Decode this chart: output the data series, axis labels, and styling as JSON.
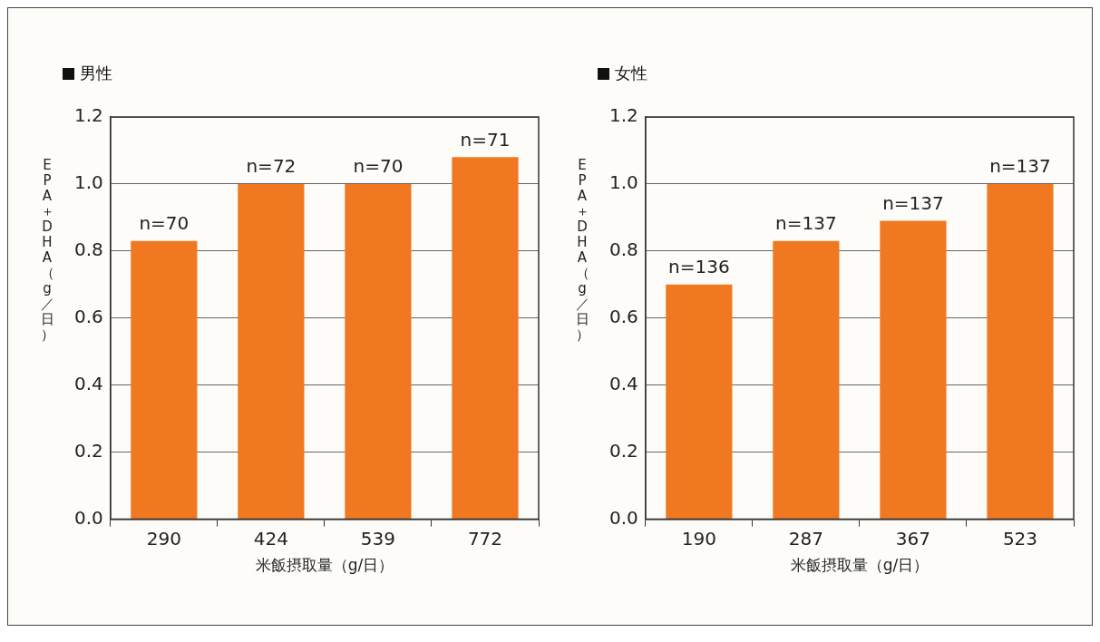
{
  "chart_data": [
    {
      "type": "bar",
      "title": "男性",
      "ylabel": "EPA＋DHA（g／日）",
      "xlabel": "米飯摂取量（g/日）",
      "categories": [
        "290",
        "424",
        "539",
        "772"
      ],
      "values": [
        0.83,
        1.0,
        1.0,
        1.08
      ],
      "annotations": [
        {
          "text": "n=70",
          "x": "290",
          "y": 0.83
        },
        {
          "text": "n=72",
          "x": "424",
          "y": 1.0
        },
        {
          "text": "n=70",
          "x": "539",
          "y": 1.0
        },
        {
          "text": "n=71",
          "x": "772",
          "y": 1.08
        }
      ],
      "color": "#f07820",
      "ylim": [
        0,
        1.2
      ],
      "yticks": [
        {
          "value": 0,
          "label": "0.0"
        },
        0.2,
        0.4,
        0.6,
        0.8,
        {
          "value": 1,
          "label": "1.0"
        },
        {
          "value": 1.2,
          "label": "1.2"
        }
      ],
      "grid": "y",
      "legend": false
    },
    {
      "type": "bar",
      "title": "女性",
      "ylabel": "EPA＋DHA（g／日）",
      "xlabel": "米飯摂取量（g/日）",
      "categories": [
        "190",
        "287",
        "367",
        "523"
      ],
      "values": [
        0.7,
        0.83,
        0.89,
        1.0
      ],
      "annotations": [
        {
          "text": "n=136",
          "x": "190",
          "y": 0.7
        },
        {
          "text": "n=137",
          "x": "287",
          "y": 0.83
        },
        {
          "text": "n=137",
          "x": "367",
          "y": 0.89
        },
        {
          "text": "n=137",
          "x": "523",
          "y": 1.0
        }
      ],
      "color": "#f07820",
      "ylim": [
        0,
        1.2
      ],
      "yticks": [
        {
          "value": 0,
          "label": "0.0"
        },
        0.2,
        0.4,
        0.6,
        0.8,
        {
          "value": 1,
          "label": "1.0"
        },
        {
          "value": 1.2,
          "label": "1.2"
        }
      ],
      "grid": "y",
      "legend": false
    }
  ]
}
